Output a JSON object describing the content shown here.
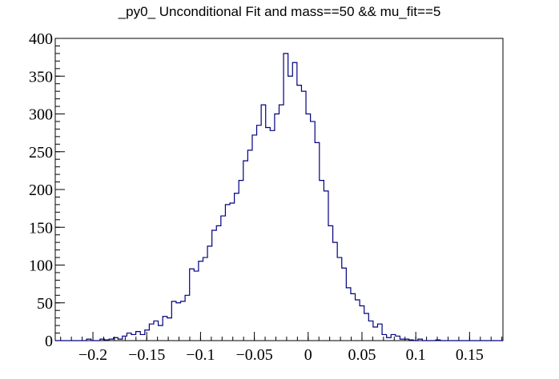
{
  "chart_data": {
    "type": "bar",
    "title": "_py0_ Unconditional Fit and mass==50 && mu_fit==5",
    "xlabel": "",
    "ylabel": "",
    "xlim": [
      -0.235,
      0.181
    ],
    "ylim": [
      0,
      400
    ],
    "x_ticks": [
      -0.2,
      -0.15,
      -0.1,
      -0.05,
      0,
      0.05,
      0.1,
      0.15
    ],
    "x_tick_labels": [
      "−0.2",
      "−0.15",
      "−0.1",
      "−0.05",
      "0",
      "0.05",
      "0.1",
      "0.15"
    ],
    "y_ticks": [
      0,
      50,
      100,
      150,
      200,
      250,
      300,
      350,
      400
    ],
    "y_tick_labels": [
      "0",
      "50",
      "100",
      "150",
      "200",
      "250",
      "300",
      "350",
      "400"
    ],
    "grid": false,
    "line_color": "#000080",
    "bins": {
      "start": -0.235,
      "width": 0.00416,
      "values": [
        0,
        0,
        0,
        0,
        0,
        0,
        0,
        2,
        0,
        0,
        2,
        1,
        2,
        4,
        2,
        6,
        10,
        8,
        12,
        8,
        14,
        22,
        26,
        20,
        32,
        30,
        52,
        50,
        52,
        60,
        95,
        92,
        105,
        110,
        125,
        146,
        152,
        165,
        180,
        182,
        195,
        212,
        238,
        252,
        272,
        285,
        312,
        282,
        278,
        300,
        312,
        380,
        350,
        368,
        338,
        330,
        300,
        290,
        262,
        212,
        198,
        152,
        130,
        110,
        96,
        70,
        62,
        54,
        46,
        36,
        26,
        18,
        22,
        8,
        4,
        8,
        6,
        2,
        2,
        1,
        0,
        2,
        0,
        0,
        0,
        1,
        0,
        0,
        0,
        0,
        0,
        0,
        0,
        0,
        0,
        0,
        0,
        0,
        0,
        0
      ]
    }
  }
}
